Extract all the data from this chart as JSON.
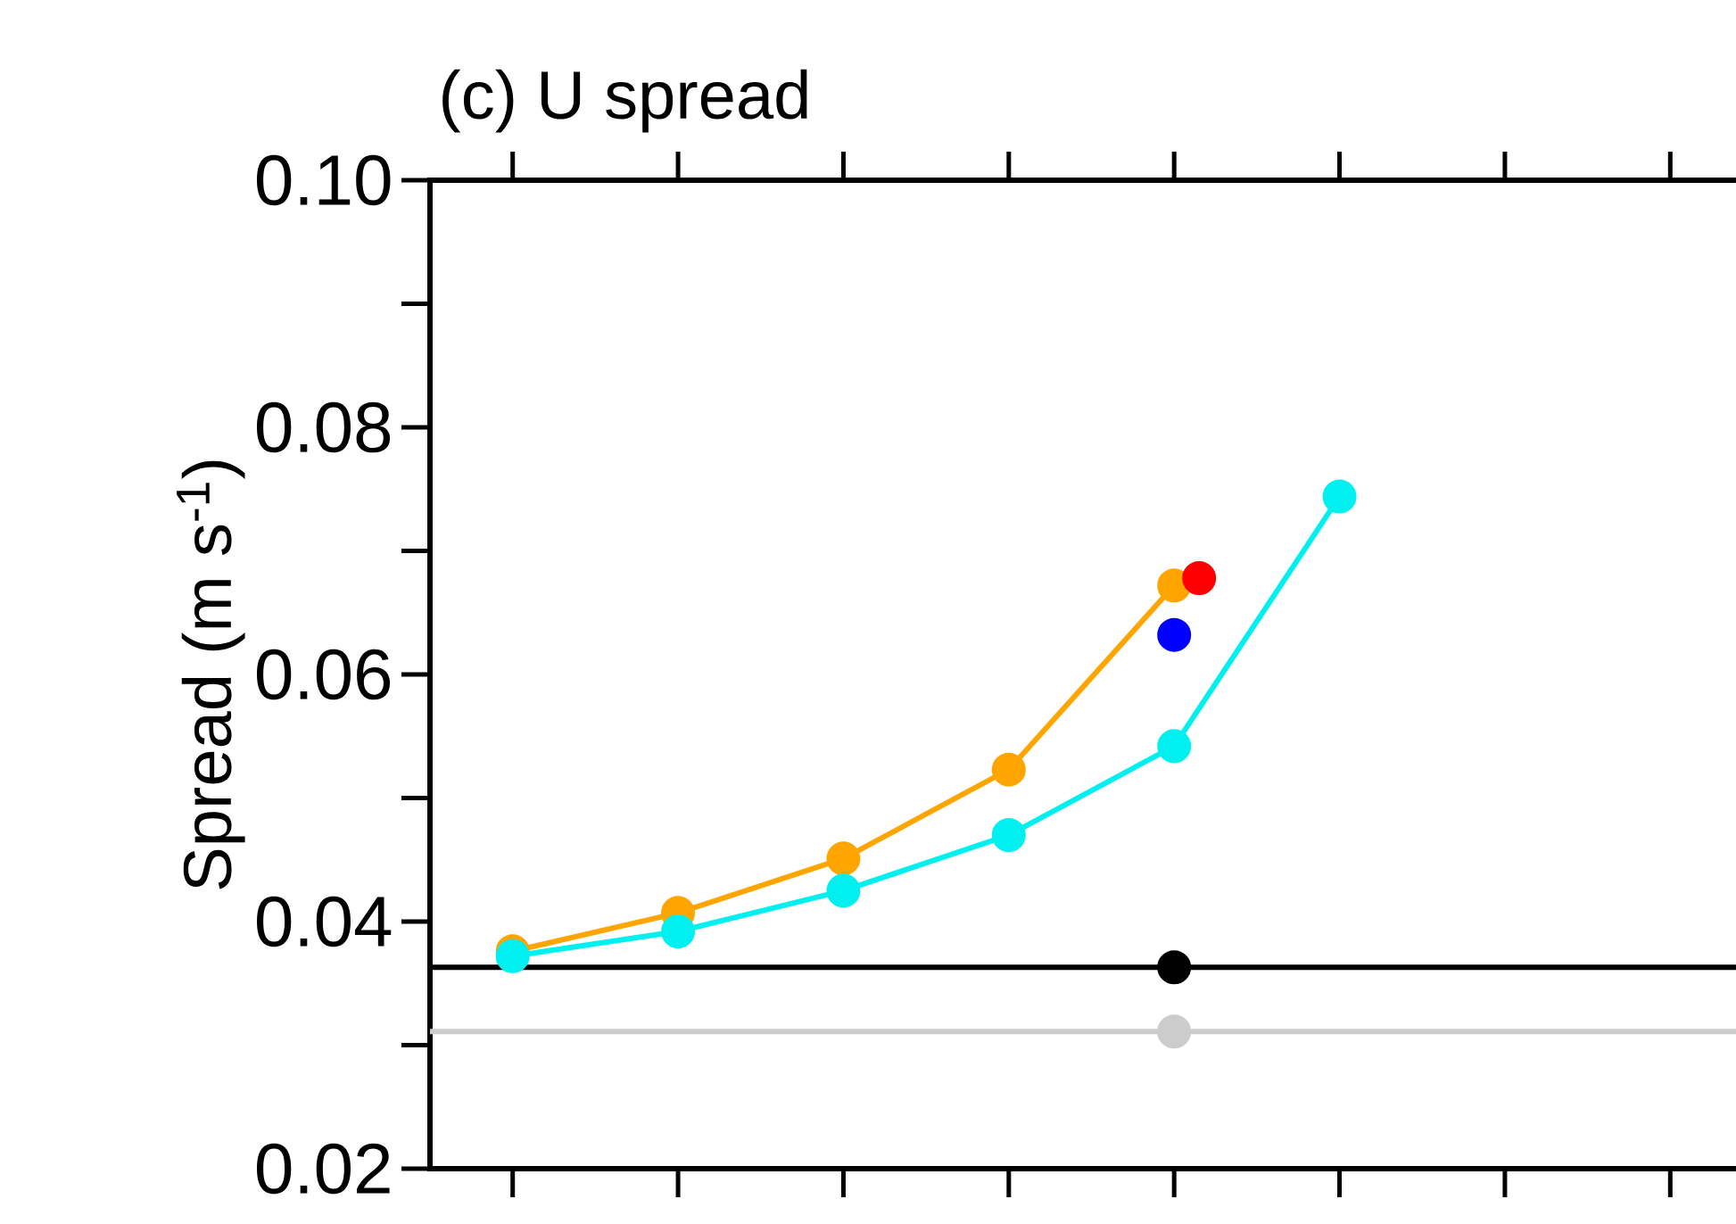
{
  "chart_data": {
    "type": "line",
    "title": "(c) U spread",
    "ylabel": "Spread (m s$^{-1}$)",
    "categories": [
      null,
      null,
      null,
      null,
      null,
      null,
      null,
      null
    ],
    "ylim": [
      0.02,
      0.1
    ],
    "yticks": [
      0.02,
      {
        "value": 0.03,
        "label": null
      },
      0.04,
      {
        "value": 0.05,
        "label": null
      },
      0.06,
      {
        "value": 0.07,
        "label": null
      },
      0.08,
      {
        "value": 0.09,
        "label": null
      },
      {
        "value": 0.1,
        "label": "0.10"
      }
    ],
    "tick_labels": "y",
    "marker": "circle",
    "line_style": "solid",
    "series": [
      {
        "color": "#ffa500",
        "values": [
          0.0376,
          0.0407,
          0.0451,
          0.0523,
          0.0672,
          null,
          null,
          null
        ]
      },
      {
        "color": "#00f0f0",
        "values": [
          0.0372,
          0.0392,
          0.0425,
          0.047,
          0.0542,
          0.0744,
          null,
          null
        ]
      },
      {
        "type": "scatter",
        "color": "#ff0000",
        "values": [
          null,
          null,
          null,
          null,
          0.0678,
          null,
          null,
          null
        ]
      },
      {
        "type": "scatter",
        "color": "#0000ff",
        "values": [
          null,
          null,
          null,
          null,
          0.0632,
          null,
          null,
          null
        ]
      },
      {
        "type": "scatter",
        "color": "#000000",
        "values": [
          null,
          null,
          null,
          null,
          0.0363,
          null,
          null,
          null
        ]
      },
      {
        "type": "scatter",
        "color": "#cccccc",
        "values": [
          null,
          null,
          null,
          null,
          0.0311,
          null,
          null,
          null
        ]
      }
    ],
    "ref_lines": [
      {
        "axis": "y",
        "value": 0.0363,
        "color": "#000000"
      },
      {
        "axis": "y",
        "value": 0.0311,
        "color": "#cccccc"
      }
    ]
  }
}
